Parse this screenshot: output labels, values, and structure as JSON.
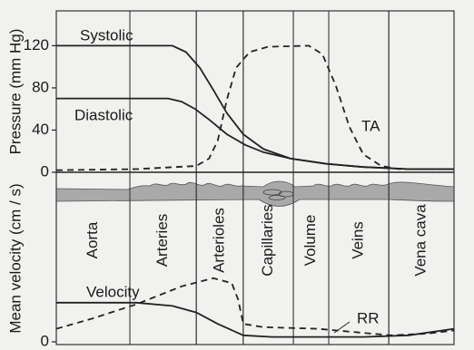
{
  "chart_data": [
    {
      "type": "line",
      "ylabel": "Pressure (mm Hg)",
      "xlim": [
        0,
        100
      ],
      "ylim": [
        0,
        153
      ],
      "yticks": [
        0,
        40,
        80,
        120
      ],
      "series": [
        {
          "name": "Systolic",
          "color": "#222222",
          "dash": false,
          "x": [
            0,
            29.2,
            32.6,
            36.1,
            39.5,
            42.9,
            47,
            52.1,
            58.9,
            68,
            77.2,
            88.6,
            100
          ],
          "values": [
            120,
            120,
            114,
            99,
            78,
            56,
            36,
            22,
            13,
            8,
            5,
            3,
            3
          ]
        },
        {
          "name": "Diastolic",
          "color": "#222222",
          "dash": false,
          "x": [
            0,
            28.1,
            31.5,
            34.9,
            38.4,
            42.9,
            47.5,
            52.1,
            58.9,
            68,
            77.2,
            88.6,
            100
          ],
          "values": [
            70,
            70,
            67,
            60,
            50,
            36,
            26,
            19,
            13,
            8,
            5,
            3,
            3
          ]
        },
        {
          "name": "TA",
          "color": "#222222",
          "dash": true,
          "x": [
            0,
            20.1,
            35.2,
            38.4,
            40.6,
            42.9,
            45.2,
            48.6,
            53.2,
            63.5,
            66.9,
            70.3,
            73.7,
            77.2,
            81.7,
            86.3,
            100
          ],
          "values": [
            2,
            3,
            6,
            13,
            30,
            69,
            99,
            114,
            119,
            120,
            112,
            82,
            43,
            17,
            6,
            3,
            3
          ]
        }
      ]
    },
    {
      "type": "line",
      "ylabel": "Mean velocity (cm / s)",
      "xlim": [
        0,
        100
      ],
      "ylim": [
        0,
        100
      ],
      "yticks": [
        0
      ],
      "regions": [
        {
          "label": "Aorta",
          "start": 0,
          "end": 18.5
        },
        {
          "label": "Arteries",
          "start": 18.5,
          "end": 35.2
        },
        {
          "label": "Arterioles",
          "start": 35.2,
          "end": 47
        },
        {
          "label": "Capillaries",
          "start": 47,
          "end": 59.6
        },
        {
          "label": "Volume",
          "start": 59.6,
          "end": 68.5
        },
        {
          "label": "Veins",
          "start": 68.5,
          "end": 83.6
        },
        {
          "label": "Vena cava",
          "start": 83.6,
          "end": 100
        }
      ],
      "series": [
        {
          "name": "Velocity",
          "color": "#222222",
          "dash": false,
          "x": [
            0,
            20.1,
            29.2,
            35.2,
            40.6,
            47,
            54.3,
            77.2,
            88.6,
            100
          ],
          "values": [
            24,
            24,
            22,
            18,
            11,
            4,
            3,
            3,
            4,
            8
          ]
        },
        {
          "name": "RR",
          "color": "#222222",
          "dash": true,
          "x": [
            0,
            8.7,
            20.1,
            31.5,
            39.5,
            44.1,
            45.7,
            47,
            52.1,
            65.8,
            84,
            93.2,
            100
          ],
          "values": [
            8,
            14,
            23,
            34,
            39,
            36,
            26,
            11,
            9,
            8,
            4,
            5,
            7
          ]
        }
      ]
    }
  ]
}
